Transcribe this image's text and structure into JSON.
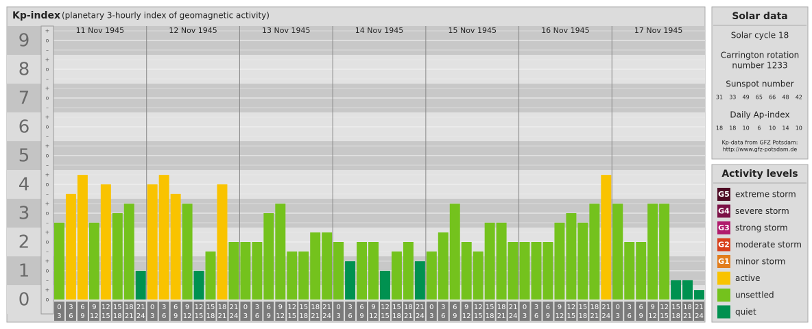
{
  "chart_data": {
    "type": "bar",
    "title": "Kp-index",
    "subtitle": "(planetary 3-hourly index of geomagnetic activity)",
    "ylim": [
      0,
      9.5
    ],
    "yticks": [
      0,
      1,
      2,
      3,
      4,
      5,
      6,
      7,
      8,
      9
    ],
    "minor_tick_labels": [
      "–",
      "o",
      "+"
    ],
    "hours": [
      [
        "0",
        "3"
      ],
      [
        "3",
        "6"
      ],
      [
        "6",
        "9"
      ],
      [
        "9",
        "12"
      ],
      [
        "12",
        "15"
      ],
      [
        "15",
        "18"
      ],
      [
        "18",
        "21"
      ],
      [
        "21",
        "24"
      ]
    ],
    "days": [
      {
        "date": "11 Nov 1945",
        "values": [
          2.67,
          3.67,
          4.33,
          2.67,
          4,
          3,
          3.33,
          1
        ],
        "colors": [
          "#74c21d",
          "#f9c300",
          "#f9c300",
          "#74c21d",
          "#f9c300",
          "#74c21d",
          "#74c21d",
          "#009150"
        ]
      },
      {
        "date": "12 Nov 1945",
        "values": [
          4,
          4.33,
          3.67,
          3.33,
          1,
          1.67,
          4,
          2
        ],
        "colors": [
          "#f9c300",
          "#f9c300",
          "#f9c300",
          "#74c21d",
          "#009150",
          "#74c21d",
          "#f9c300",
          "#74c21d"
        ]
      },
      {
        "date": "13 Nov 1945",
        "values": [
          2,
          2,
          3,
          3.33,
          1.67,
          1.67,
          2.33,
          2.33
        ],
        "colors": [
          "#74c21d",
          "#74c21d",
          "#74c21d",
          "#74c21d",
          "#74c21d",
          "#74c21d",
          "#74c21d",
          "#74c21d"
        ]
      },
      {
        "date": "14 Nov 1945",
        "values": [
          2,
          1.33,
          2,
          2,
          1,
          1.67,
          2,
          1.33
        ],
        "colors": [
          "#74c21d",
          "#009150",
          "#74c21d",
          "#74c21d",
          "#009150",
          "#74c21d",
          "#74c21d",
          "#009150"
        ]
      },
      {
        "date": "15 Nov 1945",
        "values": [
          1.67,
          2.33,
          3.33,
          2,
          1.67,
          2.67,
          2.67,
          2
        ],
        "colors": [
          "#74c21d",
          "#74c21d",
          "#74c21d",
          "#74c21d",
          "#74c21d",
          "#74c21d",
          "#74c21d",
          "#74c21d"
        ]
      },
      {
        "date": "16 Nov 1945",
        "values": [
          2,
          2,
          2,
          2.67,
          3,
          2.67,
          3.33,
          4.33
        ],
        "colors": [
          "#74c21d",
          "#74c21d",
          "#74c21d",
          "#74c21d",
          "#74c21d",
          "#74c21d",
          "#74c21d",
          "#f9c300"
        ]
      },
      {
        "date": "17 Nov 1945",
        "values": [
          3.33,
          2,
          2,
          3.33,
          3.33,
          0.67,
          0.67,
          0.33
        ],
        "colors": [
          "#74c21d",
          "#74c21d",
          "#74c21d",
          "#74c21d",
          "#74c21d",
          "#009150",
          "#009150",
          "#009150"
        ]
      }
    ]
  },
  "solar": {
    "title": "Solar data",
    "cycle": "Solar cycle 18",
    "carrington": [
      "Carrington rotation",
      "number 1233"
    ],
    "sunspot_title": "Sunspot number",
    "sunspots": [
      31,
      33,
      49,
      65,
      66,
      48,
      42
    ],
    "ap_title": "Daily Ap-index",
    "ap": [
      18,
      18,
      10,
      6,
      10,
      14,
      10
    ],
    "credit": [
      "Kp-data from GFZ Potsdam:",
      "http://www.gfz-potsdam.de"
    ]
  },
  "legend": {
    "title": "Activity levels",
    "items": [
      {
        "code": "G5",
        "label": "extreme storm",
        "color": "#4e0a24"
      },
      {
        "code": "G4",
        "label": "severe storm",
        "color": "#7c1247"
      },
      {
        "code": "G3",
        "label": "strong storm",
        "color": "#b01a6c"
      },
      {
        "code": "G2",
        "label": "moderate storm",
        "color": "#d8401c"
      },
      {
        "code": "G1",
        "label": "minor storm",
        "color": "#e27d1c"
      },
      {
        "label": "active",
        "color": "#f9c300"
      },
      {
        "label": "unsettled",
        "color": "#74c21d"
      },
      {
        "label": "quiet",
        "color": "#009150"
      }
    ]
  }
}
